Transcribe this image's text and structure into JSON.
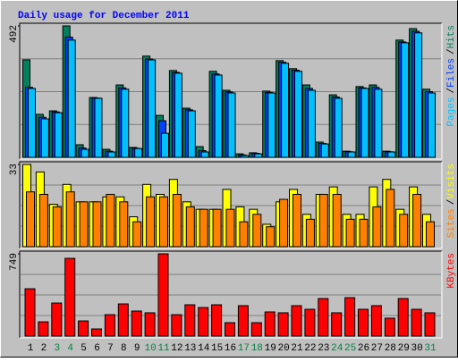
{
  "title": "Daily usage for December 2011",
  "chart_data": [
    {
      "type": "bar",
      "ylim": [
        0,
        492
      ],
      "yticks": [
        492
      ],
      "legend_separator": "/",
      "series": [
        {
          "name": "Hits",
          "color": "#00805c",
          "values": [
            365,
            161,
            174,
            492,
            47,
            224,
            30,
            271,
            37,
            379,
            157,
            325,
            184,
            40,
            322,
            251,
            13,
            17,
            248,
            362,
            332,
            271,
            57,
            234,
            23,
            265,
            271,
            23,
            439,
            482,
            255
          ]
        },
        {
          "name": "Files",
          "color": "#0040ff",
          "values": [
            262,
            150,
            170,
            450,
            35,
            222,
            23,
            260,
            34,
            368,
            137,
            318,
            178,
            25,
            312,
            245,
            9,
            15,
            243,
            356,
            326,
            258,
            52,
            226,
            21,
            260,
            262,
            21,
            432,
            472,
            246
          ]
        },
        {
          "name": "Pages",
          "color": "#00c0ff",
          "values": [
            258,
            144,
            167,
            439,
            30,
            221,
            20,
            255,
            33,
            365,
            90,
            315,
            174,
            20,
            308,
            241,
            7,
            13,
            241,
            352,
            322,
            251,
            50,
            221,
            20,
            258,
            255,
            20,
            429,
            466,
            241
          ]
        }
      ]
    },
    {
      "type": "bar",
      "ylim": [
        0,
        33
      ],
      "yticks": [
        33
      ],
      "legend_separator": "/",
      "series": [
        {
          "name": "Visits",
          "color": "#ffff00",
          "values": [
            33,
            30,
            17,
            25,
            18,
            18,
            20,
            20,
            12,
            25,
            21,
            27,
            18,
            15,
            15,
            23,
            16,
            15,
            9,
            18,
            23,
            13,
            21,
            24,
            13,
            13,
            24,
            27,
            15,
            24,
            13
          ]
        },
        {
          "name": "Sites",
          "color": "#ff8000",
          "values": [
            22,
            21,
            16,
            22,
            18,
            18,
            21,
            18,
            10,
            20,
            20,
            21,
            16,
            15,
            15,
            15,
            10,
            13,
            8,
            19,
            21,
            11,
            21,
            21,
            11,
            11,
            16,
            23,
            13,
            21,
            10
          ]
        }
      ]
    },
    {
      "type": "bar",
      "ylim": [
        0,
        749
      ],
      "yticks": [
        749
      ],
      "categories": [
        "1",
        "2",
        "3",
        "4",
        "5",
        "6",
        "7",
        "8",
        "9",
        "10",
        "11",
        "12",
        "13",
        "14",
        "15",
        "16",
        "17",
        "18",
        "19",
        "20",
        "21",
        "22",
        "23",
        "24",
        "25",
        "26",
        "27",
        "28",
        "29",
        "30",
        "31"
      ],
      "category_colors": [
        "#000000",
        "#000000",
        "#008040",
        "#008040",
        "#000000",
        "#000000",
        "#000000",
        "#000000",
        "#000000",
        "#008040",
        "#008040",
        "#000000",
        "#000000",
        "#000000",
        "#000000",
        "#000000",
        "#008040",
        "#008040",
        "#000000",
        "#000000",
        "#000000",
        "#000000",
        "#000000",
        "#008040",
        "#008040",
        "#000000",
        "#000000",
        "#000000",
        "#000000",
        "#000000",
        "#008040"
      ],
      "series": [
        {
          "name": "KBytes",
          "color": "#ff0000",
          "values": [
            431,
            130,
            301,
            708,
            138,
            65,
            195,
            293,
            228,
            212,
            749,
            195,
            285,
            260,
            285,
            122,
            277,
            122,
            220,
            212,
            277,
            244,
            342,
            212,
            350,
            244,
            277,
            163,
            342,
            244,
            212
          ]
        }
      ]
    }
  ]
}
